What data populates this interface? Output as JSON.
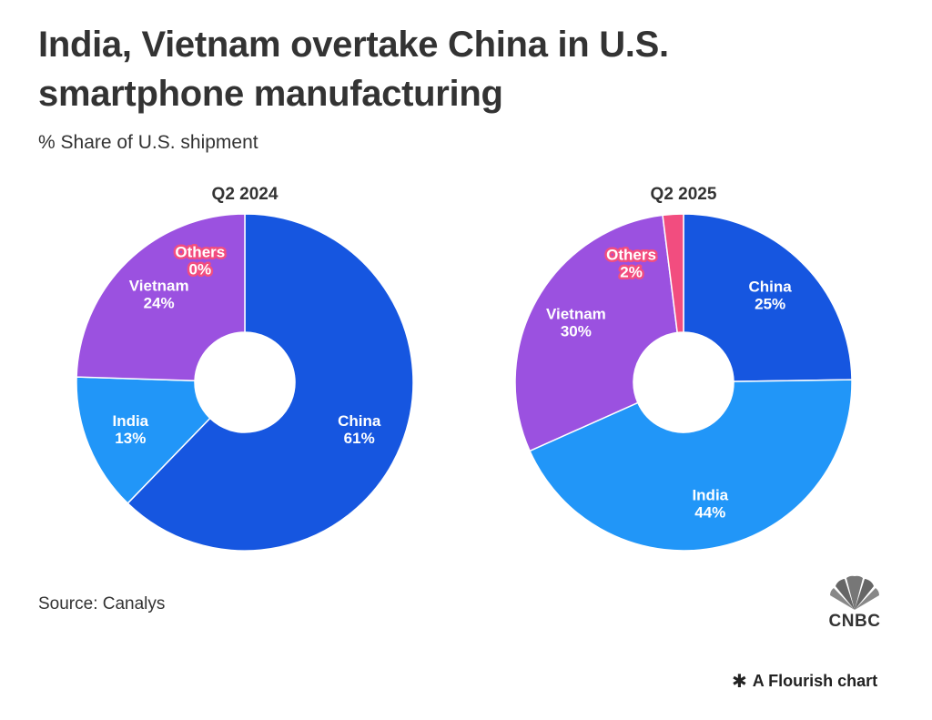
{
  "title": "India, Vietnam overtake China in U.S. smartphone manufacturing",
  "subtitle": "% Share of U.S. shipment",
  "source": "Source: Canalys",
  "logo_text": "CNBC",
  "flourish_label": "A Flourish chart",
  "colors": {
    "China": "#1656e0",
    "India": "#2196f8",
    "Vietnam": "#9b51e0",
    "Others": "#f24d7f"
  },
  "chart_data": [
    {
      "type": "pie",
      "title": "Q2 2024",
      "slices": [
        {
          "label": "China",
          "value": 61,
          "display": "61%"
        },
        {
          "label": "India",
          "value": 13,
          "display": "13%"
        },
        {
          "label": "Vietnam",
          "value": 24,
          "display": "24%"
        },
        {
          "label": "Others",
          "value": 0,
          "display": "0%"
        }
      ]
    },
    {
      "type": "pie",
      "title": "Q2 2025",
      "slices": [
        {
          "label": "China",
          "value": 25,
          "display": "25%"
        },
        {
          "label": "India",
          "value": 44,
          "display": "44%"
        },
        {
          "label": "Vietnam",
          "value": 30,
          "display": "30%"
        },
        {
          "label": "Others",
          "value": 2,
          "display": "2%"
        }
      ]
    }
  ]
}
